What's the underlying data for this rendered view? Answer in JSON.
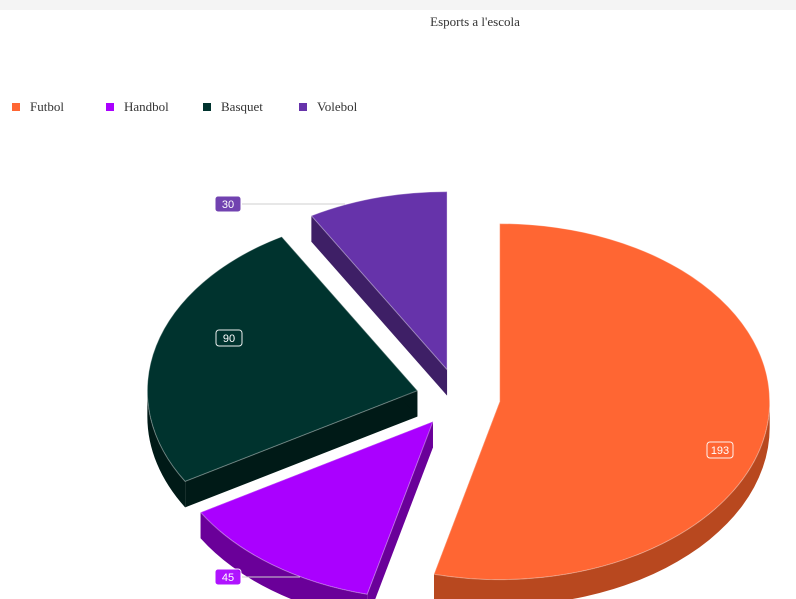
{
  "chart_data": {
    "type": "pie",
    "title": "Esports a l'escola",
    "categories": [
      "Futbol",
      "Handbol",
      "Basquet",
      "Volebol"
    ],
    "values": [
      193,
      45,
      90,
      30
    ],
    "colors": [
      "#ff6633",
      "#aa00ff",
      "#00332e",
      "#6633aa"
    ],
    "side_colors": [
      "#b8481f",
      "#6a0099",
      "#001a17",
      "#3e1f66"
    ],
    "legend_position": "top-left",
    "data_labels": [
      "193",
      "45",
      "90",
      "30"
    ]
  }
}
